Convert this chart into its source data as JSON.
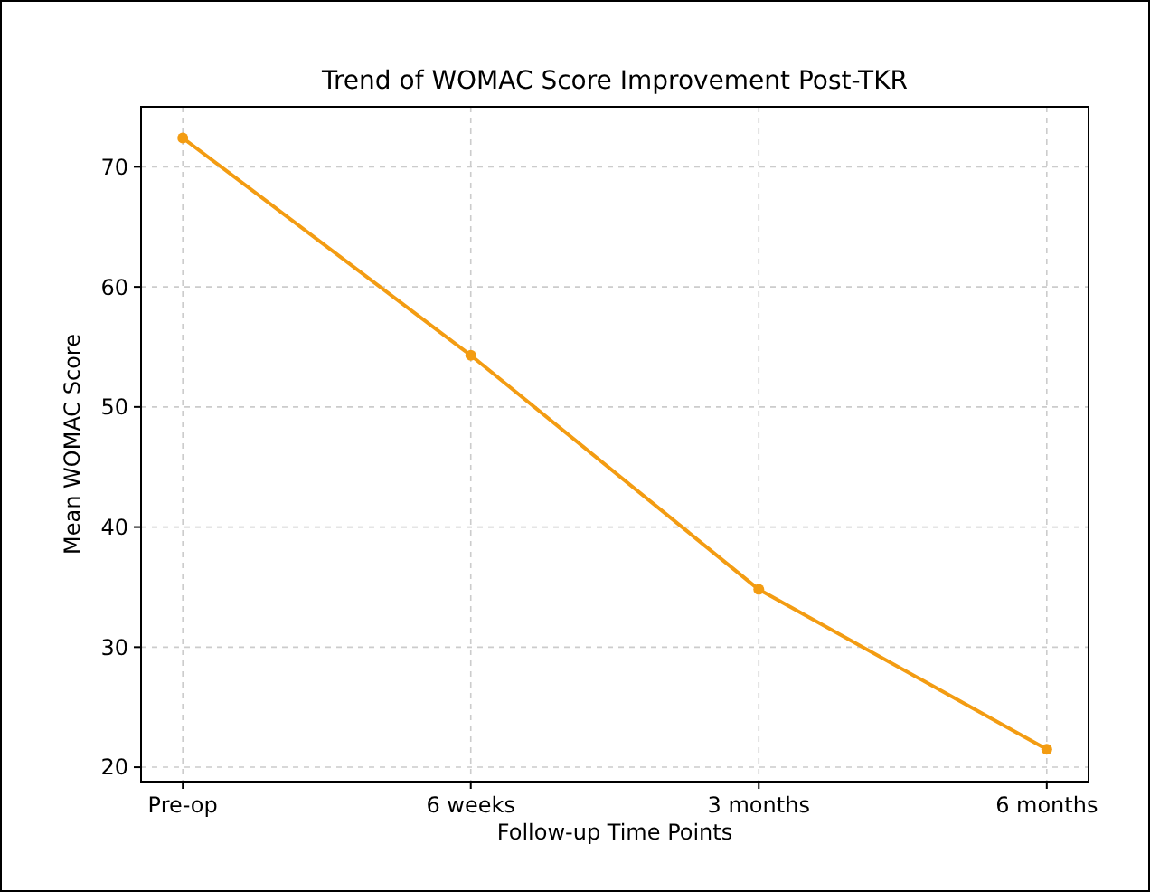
{
  "chart_data": {
    "type": "line",
    "title": "Trend of WOMAC Score Improvement Post-TKR",
    "xlabel": "Follow-up Time Points",
    "ylabel": "Mean WOMAC Score",
    "categories": [
      "Pre-op",
      "6 weeks",
      "3 months",
      "6 months"
    ],
    "series": [
      {
        "color": "#f39c12",
        "values": [
          72.4,
          54.3,
          34.8,
          21.5
        ]
      }
    ],
    "ylim": [
      18.8,
      75
    ],
    "yticks": [
      20,
      30,
      40,
      50,
      60,
      70
    ],
    "grid": true,
    "marker": "circle",
    "line_style": "solid"
  }
}
